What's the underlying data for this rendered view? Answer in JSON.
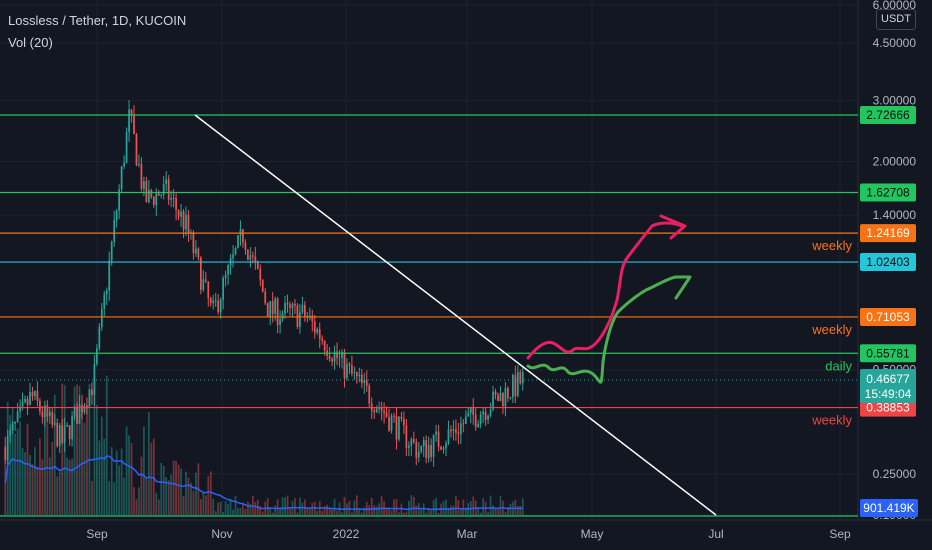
{
  "header": {
    "symbol_title": "Lossless / Tether, 1D, KUCOIN",
    "volume_indicator": "Vol (20)",
    "currency": "USDT"
  },
  "chart_data": {
    "type": "candlestick",
    "title": "Lossless / Tether, 1D, KUCOIN",
    "y_scale": "log",
    "y_axis_ticks": [
      "6.00000",
      "4.50000",
      "3.00000",
      "2.00000",
      "1.40000",
      "0.50000",
      "0.25000",
      "0.19000"
    ],
    "y_axis_values": [
      6.0,
      4.5,
      3.0,
      2.0,
      1.4,
      0.5,
      0.25,
      0.19
    ],
    "x_axis_ticks": [
      "Sep",
      "Nov",
      "2022",
      "Mar",
      "May",
      "Jul",
      "Sep"
    ],
    "horizontal_levels": [
      {
        "price": 2.72666,
        "label": "2.72666",
        "color": "#22c55e",
        "note": ""
      },
      {
        "price": 1.62708,
        "label": "1.62708",
        "color": "#22c55e",
        "note": ""
      },
      {
        "price": 1.24169,
        "label": "1.24169",
        "color": "#f97316",
        "note": "weekly"
      },
      {
        "price": 1.02403,
        "label": "1.02403",
        "color": "#26c6da",
        "note": ""
      },
      {
        "price": 0.71053,
        "label": "0.71053",
        "color": "#f97316",
        "note": "weekly"
      },
      {
        "price": 0.55781,
        "label": "0.55781",
        "color": "#22c55e",
        "note": "daily"
      },
      {
        "price": 0.38853,
        "label": "0.38853",
        "color": "#ef4444",
        "note": "weekly"
      }
    ],
    "bottom_line_color": "#22c55e",
    "last_price": {
      "value": "0.46677",
      "countdown": "15:49:04",
      "color": "#26a69a"
    },
    "volume_ma_value": {
      "value": "901.419K",
      "color": "#2962ff"
    },
    "trendline": {
      "from_price": 2.72666,
      "to_price": 0.19,
      "color": "#ffffff"
    },
    "projection_paths": [
      {
        "name": "",
        "color": "#e91e63"
      },
      {
        "name": "",
        "color": "#4caf50"
      }
    ],
    "price_anchors": [
      {
        "price": 0.3,
        "start": 0.0
      },
      {
        "price": 0.42,
        "start": 0.05
      },
      {
        "price": 0.31,
        "start": 0.11
      },
      {
        "price": 0.46,
        "start": 0.17
      },
      {
        "price": 2.72666,
        "start": 0.24
      },
      {
        "price": 1.55,
        "start": 0.27
      },
      {
        "price": 1.65,
        "start": 0.31
      },
      {
        "price": 1.3,
        "start": 0.35
      },
      {
        "price": 0.72,
        "start": 0.4
      },
      {
        "price": 1.24,
        "start": 0.46
      },
      {
        "price": 0.74,
        "start": 0.51
      },
      {
        "price": 0.72,
        "start": 0.58
      },
      {
        "price": 0.52,
        "start": 0.65
      },
      {
        "price": 0.29,
        "start": 0.8
      },
      {
        "price": 0.32,
        "start": 0.85
      },
      {
        "price": 0.46677,
        "start": 1.0
      }
    ],
    "grid": true,
    "theme": "dark"
  }
}
